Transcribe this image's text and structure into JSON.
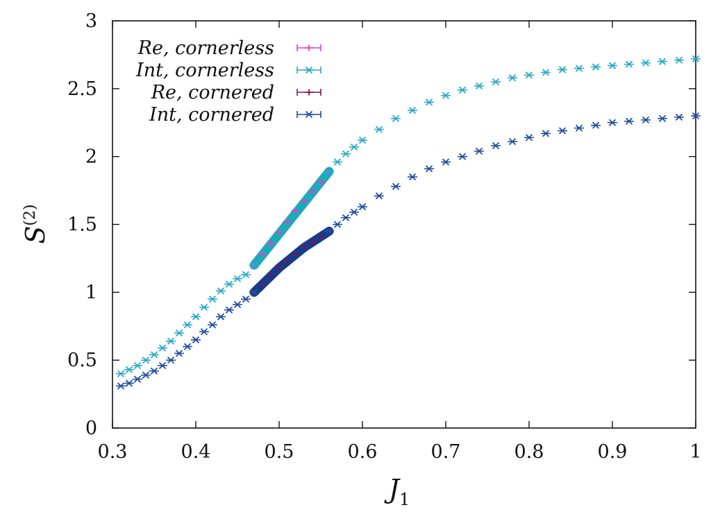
{
  "chart_data": {
    "type": "scatter",
    "xlabel": "J",
    "xlabel_sub": "1",
    "ylabel": "S",
    "ylabel_sup": "(2)",
    "xlim": [
      0.3,
      1.0
    ],
    "ylim": [
      0,
      3
    ],
    "xticks": [
      {
        "value": 0.3,
        "label": "0.3"
      },
      {
        "value": 0.4,
        "label": "0.4"
      },
      {
        "value": 0.5,
        "label": "0.5"
      },
      {
        "value": 0.6,
        "label": "0.6"
      },
      {
        "value": 0.7,
        "label": "0.7"
      },
      {
        "value": 0.8,
        "label": "0.8"
      },
      {
        "value": 0.9,
        "label": "0.9"
      },
      {
        "value": 1.0,
        "label": "1"
      }
    ],
    "yticks": [
      {
        "value": 0,
        "label": "0"
      },
      {
        "value": 0.5,
        "label": "0.5"
      },
      {
        "value": 1,
        "label": "1"
      },
      {
        "value": 1.5,
        "label": "1.5"
      },
      {
        "value": 2,
        "label": "2"
      },
      {
        "value": 2.5,
        "label": "2.5"
      },
      {
        "value": 3,
        "label": "3"
      }
    ],
    "grid": false,
    "legend_position": "top-left",
    "series": [
      {
        "name": "Re, cornerless",
        "color": "#e040d0",
        "marker": "plus",
        "x": [
          0.47,
          0.48,
          0.49,
          0.5,
          0.51,
          0.52,
          0.53,
          0.54,
          0.55,
          0.56
        ],
        "y": [
          1.2,
          1.28,
          1.36,
          1.44,
          1.52,
          1.6,
          1.67,
          1.74,
          1.81,
          1.89
        ]
      },
      {
        "name": "Int, cornerless",
        "color": "#29a9c9",
        "marker": "x",
        "x": [
          0.31,
          0.32,
          0.33,
          0.34,
          0.35,
          0.36,
          0.37,
          0.38,
          0.39,
          0.4,
          0.41,
          0.42,
          0.43,
          0.44,
          0.45,
          0.46,
          0.47,
          0.56,
          0.57,
          0.58,
          0.59,
          0.6,
          0.62,
          0.64,
          0.66,
          0.68,
          0.7,
          0.72,
          0.74,
          0.76,
          0.78,
          0.8,
          0.82,
          0.84,
          0.86,
          0.88,
          0.9,
          0.92,
          0.94,
          0.96,
          0.98,
          1.0
        ],
        "y": [
          0.4,
          0.43,
          0.46,
          0.5,
          0.54,
          0.59,
          0.64,
          0.7,
          0.76,
          0.82,
          0.89,
          0.95,
          1.01,
          1.06,
          1.1,
          1.13,
          1.2,
          1.89,
          1.96,
          2.02,
          2.07,
          2.12,
          2.2,
          2.28,
          2.34,
          2.4,
          2.45,
          2.49,
          2.52,
          2.55,
          2.58,
          2.6,
          2.62,
          2.64,
          2.65,
          2.66,
          2.67,
          2.68,
          2.69,
          2.7,
          2.71,
          2.72
        ]
      },
      {
        "name": "Re, cornered",
        "color": "#7a1450",
        "marker": "plus",
        "x": [
          0.47,
          0.48,
          0.49,
          0.5,
          0.51,
          0.52,
          0.53,
          0.54,
          0.55,
          0.56
        ],
        "y": [
          1.0,
          1.06,
          1.12,
          1.18,
          1.23,
          1.28,
          1.33,
          1.37,
          1.41,
          1.45
        ]
      },
      {
        "name": "Int, cornered",
        "color": "#1f4f9e",
        "marker": "x",
        "x": [
          0.31,
          0.32,
          0.33,
          0.34,
          0.35,
          0.36,
          0.37,
          0.38,
          0.39,
          0.4,
          0.41,
          0.42,
          0.43,
          0.44,
          0.45,
          0.46,
          0.47,
          0.56,
          0.57,
          0.58,
          0.59,
          0.6,
          0.62,
          0.64,
          0.66,
          0.68,
          0.7,
          0.72,
          0.74,
          0.76,
          0.78,
          0.8,
          0.82,
          0.84,
          0.86,
          0.88,
          0.9,
          0.92,
          0.94,
          0.96,
          0.98,
          1.0
        ],
        "y": [
          0.31,
          0.33,
          0.36,
          0.39,
          0.42,
          0.46,
          0.5,
          0.55,
          0.6,
          0.65,
          0.71,
          0.76,
          0.82,
          0.87,
          0.91,
          0.95,
          1.0,
          1.45,
          1.5,
          1.55,
          1.59,
          1.63,
          1.71,
          1.78,
          1.85,
          1.91,
          1.96,
          2.0,
          2.04,
          2.08,
          2.11,
          2.14,
          2.17,
          2.19,
          2.21,
          2.23,
          2.25,
          2.26,
          2.27,
          2.28,
          2.29,
          2.3
        ]
      }
    ],
    "dense_segments": [
      {
        "name": "cornerless-dense",
        "color": "#1aacb8",
        "x": [
          0.47,
          0.56
        ],
        "y": [
          1.2,
          1.89
        ]
      },
      {
        "name": "cornered-dense",
        "color": "#0f3f8f",
        "x": [
          0.47,
          0.5,
          0.53,
          0.56
        ],
        "y": [
          1.0,
          1.18,
          1.33,
          1.45
        ]
      }
    ]
  }
}
